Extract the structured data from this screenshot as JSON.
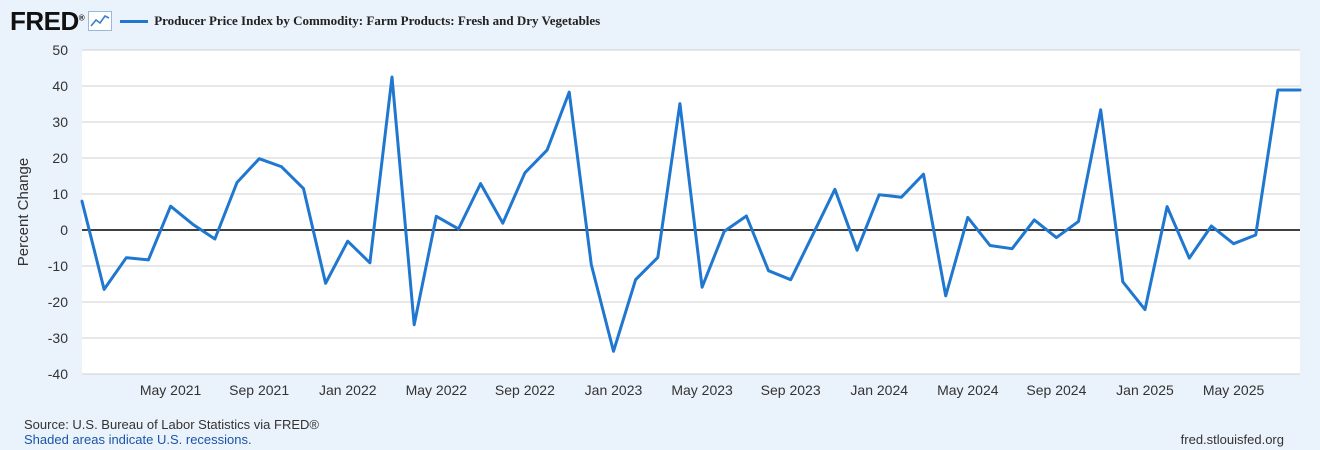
{
  "header": {
    "logo_text": "FRED",
    "logo_mark": "®",
    "logo_icon": "trend-line-icon",
    "legend_label": "Producer Price Index by Commodity: Farm Products: Fresh and Dry Vegetables"
  },
  "footer": {
    "source": "Source: U.S. Bureau of Labor Statistics via FRED®",
    "recessions": "Shaded areas indicate U.S. recessions.",
    "url": "fred.stlouisfed.org"
  },
  "colors": {
    "series": "#1f77d0",
    "background": "#eaf2fb",
    "plot_background": "#ffffff",
    "gridline": "#d0d0d0",
    "zero_line": "#000000"
  },
  "chart_data": {
    "type": "line",
    "ylabel": "Percent Change",
    "ylim": [
      -40,
      50
    ],
    "yticks": [
      50,
      40,
      30,
      20,
      10,
      0,
      -10,
      -20,
      -30,
      -40
    ],
    "grid": true,
    "legend_position": "top-left",
    "x_tick_labels": [
      "May 2021",
      "Sep 2021",
      "Jan 2022",
      "May 2022",
      "Sep 2022",
      "Jan 2023",
      "May 2023",
      "Sep 2023",
      "Jan 2024",
      "May 2024",
      "Sep 2024",
      "Jan 2025",
      "May 2025"
    ],
    "x_tick_dates": [
      "2021-05",
      "2021-09",
      "2022-01",
      "2022-05",
      "2022-09",
      "2023-01",
      "2023-05",
      "2023-09",
      "2024-01",
      "2024-05",
      "2024-09",
      "2025-01",
      "2025-05"
    ],
    "x_start": "2021-01",
    "x_end": "2025-08",
    "series": [
      {
        "x": [
          "2021-01",
          "2021-02",
          "2021-03",
          "2021-04",
          "2021-05",
          "2021-06",
          "2021-07",
          "2021-08",
          "2021-09",
          "2021-10",
          "2021-11",
          "2021-12",
          "2022-01",
          "2022-02",
          "2022-03",
          "2022-04",
          "2022-05",
          "2022-06",
          "2022-07",
          "2022-08",
          "2022-09",
          "2022-10",
          "2022-11",
          "2022-12",
          "2023-01",
          "2023-02",
          "2023-03",
          "2023-04",
          "2023-05",
          "2023-06",
          "2023-07",
          "2023-08",
          "2023-09",
          "2023-10",
          "2023-11",
          "2023-12",
          "2024-01",
          "2024-02",
          "2024-03",
          "2024-04",
          "2024-05",
          "2024-06",
          "2024-07",
          "2024-08",
          "2024-09",
          "2024-10",
          "2024-11",
          "2024-12",
          "2025-01",
          "2025-02",
          "2025-03",
          "2025-04",
          "2025-05",
          "2025-06",
          "2025-07",
          "2025-08"
        ],
        "values": [
          8,
          -16.5,
          -7.7,
          -8.3,
          6.6,
          1.6,
          -2.5,
          13.2,
          19.8,
          17.6,
          11.5,
          -14.8,
          -3.1,
          -9.1,
          42.5,
          -26.3,
          3.8,
          0.3,
          12.9,
          1.9,
          15.9,
          22.2,
          38.3,
          -9.6,
          -33.7,
          -13.8,
          -7.6,
          35.1,
          -15.9,
          -0.4,
          3.9,
          -11.3,
          -13.8,
          -1.3,
          11.3,
          -5.6,
          9.8,
          9.1,
          15.5,
          -18.3,
          3.5,
          -4.3,
          -5.2,
          2.8,
          -2.1,
          2.4,
          33.4,
          -14.4,
          -22.1,
          6.5,
          -7.8,
          1.1,
          -3.8,
          -1.4,
          38.9,
          38.9
        ]
      }
    ]
  }
}
